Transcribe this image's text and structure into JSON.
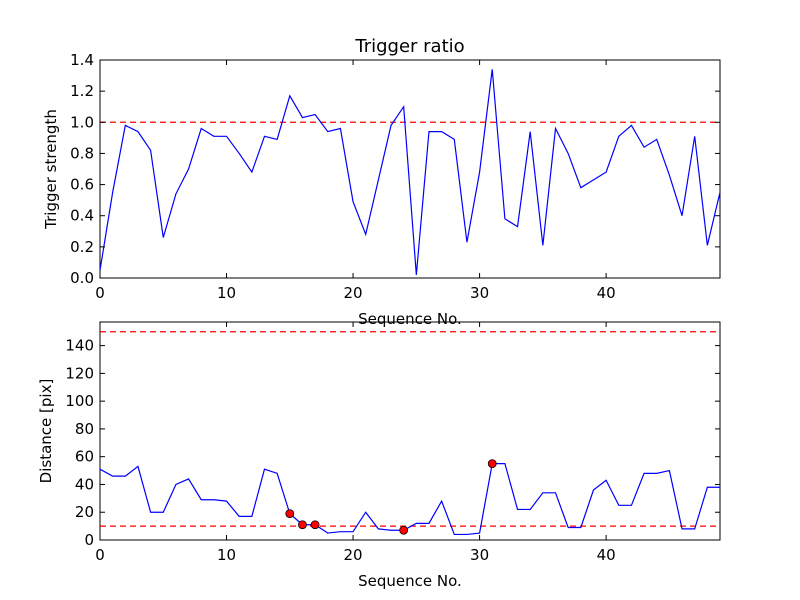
{
  "chart_data": [
    {
      "type": "line",
      "title": "Trigger ratio",
      "xlabel": "Sequence No.",
      "ylabel": "Trigger strength",
      "xlim": [
        0,
        49
      ],
      "ylim": [
        0,
        1.4
      ],
      "xticks": [
        "0",
        "10",
        "20",
        "30",
        "40"
      ],
      "yticks": [
        "0.0",
        "0.2",
        "0.4",
        "0.6",
        "0.8",
        "1.0",
        "1.2",
        "1.4"
      ],
      "grid": false,
      "line_color": "#0000ff",
      "threshold_color": "#ff0000",
      "series": [
        {
          "x": [
            0,
            1,
            2,
            3,
            4,
            5,
            6,
            7,
            8,
            9,
            10,
            11,
            12,
            13,
            14,
            15,
            16,
            17,
            18,
            19,
            20,
            21,
            22,
            23,
            24,
            25,
            26,
            27,
            28,
            29,
            30,
            31,
            32,
            33,
            34,
            35,
            36,
            37,
            38,
            39,
            40,
            41,
            42,
            43,
            44,
            45,
            46,
            47,
            48,
            49
          ],
          "values": [
            0.05,
            0.55,
            0.98,
            0.94,
            0.82,
            0.26,
            0.54,
            0.7,
            0.96,
            0.91,
            0.91,
            0.8,
            0.68,
            0.91,
            0.89,
            1.17,
            1.03,
            1.05,
            0.94,
            0.96,
            0.49,
            0.28,
            0.63,
            0.98,
            1.1,
            0.02,
            0.94,
            0.94,
            0.89,
            0.23,
            0.68,
            1.34,
            0.38,
            0.33,
            0.94,
            0.21,
            0.96,
            0.8,
            0.58,
            0.63,
            0.68,
            0.91,
            0.98,
            0.84,
            0.89,
            0.66,
            0.4,
            0.91,
            0.21,
            0.55
          ]
        }
      ],
      "thresholds": [
        1.0
      ]
    },
    {
      "type": "line",
      "title": "",
      "xlabel": "Sequence No.",
      "ylabel": "Distance [pix]",
      "xlim": [
        0,
        49
      ],
      "ylim": [
        0,
        157
      ],
      "xticks": [
        "0",
        "10",
        "20",
        "30",
        "40"
      ],
      "yticks": [
        "0",
        "20",
        "40",
        "60",
        "80",
        "100",
        "120",
        "140"
      ],
      "grid": false,
      "line_color": "#0000ff",
      "threshold_color": "#ff0000",
      "marker_color": "#ff0000",
      "series": [
        {
          "x": [
            0,
            1,
            2,
            3,
            4,
            5,
            6,
            7,
            8,
            9,
            10,
            11,
            12,
            13,
            14,
            15,
            16,
            17,
            18,
            19,
            20,
            21,
            22,
            23,
            24,
            25,
            26,
            27,
            28,
            29,
            30,
            31,
            32,
            33,
            34,
            35,
            36,
            37,
            38,
            39,
            40,
            41,
            42,
            43,
            44,
            45,
            46,
            47,
            48,
            49
          ],
          "values": [
            51,
            46,
            46,
            53,
            20,
            20,
            40,
            44,
            29,
            29,
            28,
            17,
            17,
            51,
            48,
            19,
            11,
            11,
            5,
            6,
            6,
            20,
            8,
            7,
            7,
            12,
            12,
            28,
            4,
            4,
            5,
            55,
            55,
            22,
            22,
            34,
            34,
            9,
            9,
            36,
            43,
            25,
            25,
            48,
            48,
            50,
            8,
            8,
            38,
            38
          ]
        }
      ],
      "markers": {
        "x": [
          15,
          16,
          17,
          24,
          31
        ],
        "values": [
          19,
          11,
          11,
          7,
          55
        ]
      },
      "thresholds": [
        150,
        10
      ]
    }
  ]
}
